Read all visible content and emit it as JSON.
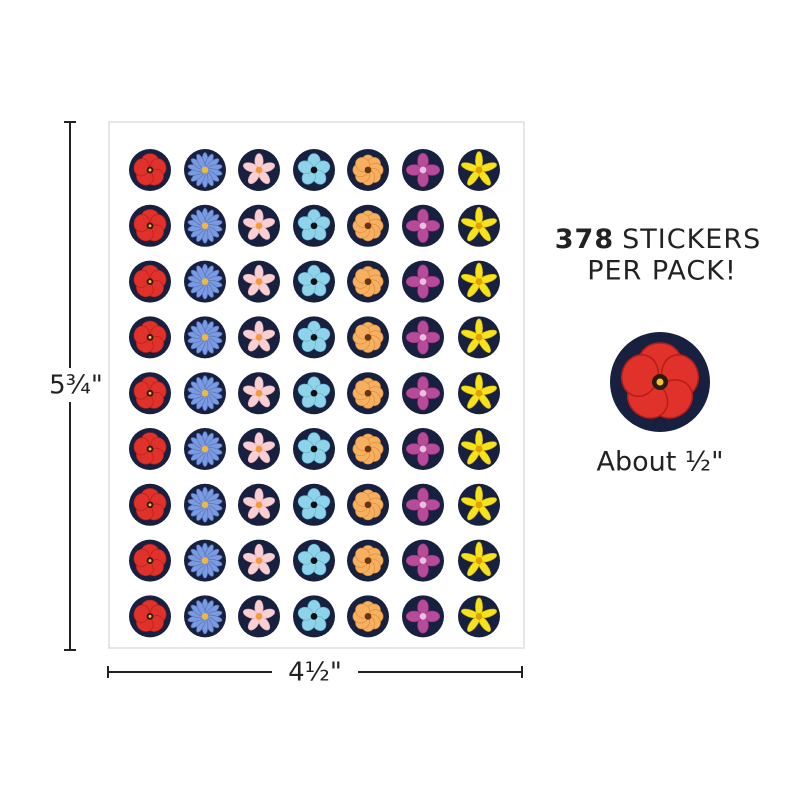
{
  "headline": {
    "count": "378",
    "unit": "STICKERS",
    "line2": "PER PACK!"
  },
  "size_label": "About ½\"",
  "dimensions": {
    "height": "5¾\"",
    "width": "4½\""
  }
}
